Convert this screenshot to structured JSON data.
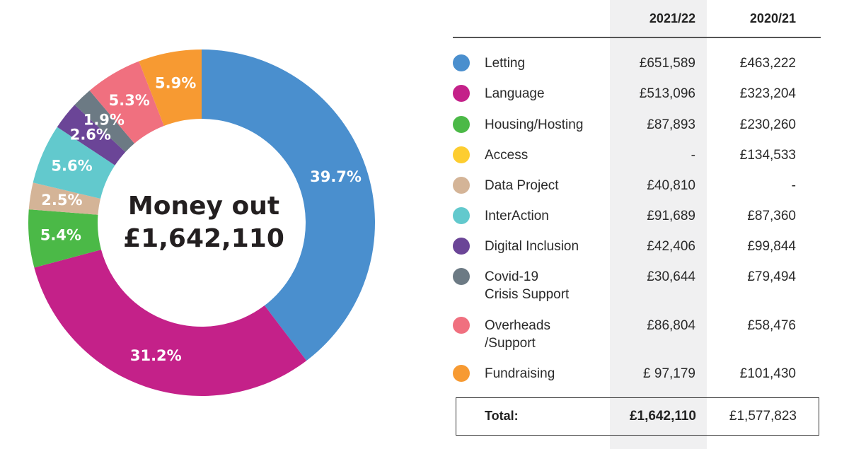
{
  "chart_data": {
    "type": "pie",
    "title": "Money out",
    "total_label": "£1,642,110",
    "labels": [
      "Letting",
      "Language",
      "Housing/Hosting",
      "Data Project",
      "InterAction",
      "Digital Inclusion",
      "Covid-19 Crisis Support",
      "Overheads /Support",
      "Fundraising"
    ],
    "values": [
      39.7,
      31.2,
      5.4,
      2.5,
      5.6,
      2.6,
      1.9,
      5.3,
      5.9
    ],
    "value_labels": [
      "39.7%",
      "31.2%",
      "5.4%",
      "2.5%",
      "5.6%",
      "2.6%",
      "1.9%",
      "5.3%",
      "5.9%"
    ],
    "colors": [
      "#4a8fce",
      "#c42189",
      "#4bb947",
      "#d4b497",
      "#62c9cd",
      "#6b4597",
      "#6c7a84",
      "#f0707f",
      "#f79a32"
    ]
  },
  "table": {
    "headers": [
      "2021/22",
      "2020/21"
    ],
    "rows": [
      {
        "label": "Letting",
        "label2": "",
        "v2122": "£651,589",
        "v2021": "£463,222",
        "color": "#4a8fce"
      },
      {
        "label": "Language",
        "label2": "",
        "v2122": "£513,096",
        "v2021": "£323,204",
        "color": "#c42189"
      },
      {
        "label": "Housing/Hosting",
        "label2": "",
        "v2122": "£87,893",
        "v2021": "£230,260",
        "color": "#4bb947"
      },
      {
        "label": "Access",
        "label2": "",
        "v2122": "-",
        "v2021": "£134,533",
        "color": "#fdcd30"
      },
      {
        "label": "Data Project",
        "label2": "",
        "v2122": "£40,810",
        "v2021": "-",
        "color": "#d4b497"
      },
      {
        "label": "InterAction",
        "label2": "",
        "v2122": "£91,689",
        "v2021": "£87,360",
        "color": "#62c9cd"
      },
      {
        "label": "Digital Inclusion",
        "label2": "",
        "v2122": "£42,406",
        "v2021": "£99,844",
        "color": "#6b4597"
      },
      {
        "label": "Covid-19",
        "label2": "Crisis Support",
        "v2122": "£30,644",
        "v2021": "£79,494",
        "color": "#6c7a84"
      },
      {
        "label": "Overheads",
        "label2": "/Support",
        "v2122": "£86,804",
        "v2021": "£58,476",
        "color": "#f0707f"
      },
      {
        "label": "Fundraising",
        "label2": "",
        "v2122": "£ 97,179",
        "v2021": "£101,430",
        "color": "#f79a32"
      }
    ],
    "total_label": "Total:",
    "total_2122": "£1,642,110",
    "total_2021": "£1,577,823"
  }
}
